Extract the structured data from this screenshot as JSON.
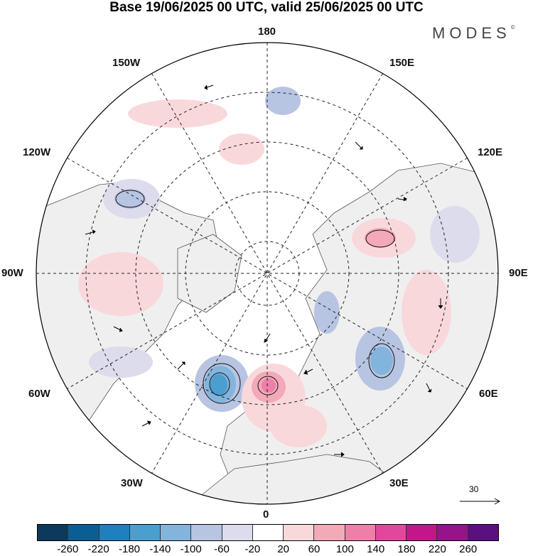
{
  "header": {
    "title": "Base 19/06/2025 00 UTC, valid 25/06/2025 00 UTC",
    "brand": "MODES",
    "brand_mark": "©"
  },
  "map": {
    "projection": "north-polar-stereographic",
    "longitude_labels": {
      "top": "180",
      "bottom": "0",
      "left": "90W",
      "right": "90E",
      "upper_left": "150W",
      "upper_right": "150E",
      "mid_left": "120W",
      "mid_right": "120E",
      "lower_left": "60W",
      "lower_right": "60E",
      "bottom_left": "30W",
      "bottom_right": "30E"
    },
    "wind_reference_vector": "30"
  },
  "legend": {
    "colors": [
      "#0b3a5c",
      "#0b5e93",
      "#1f7fbf",
      "#4b9ed0",
      "#83b4dc",
      "#b7c4e2",
      "#dcdcec",
      "#ffffff",
      "#f9d8dc",
      "#f2a9b8",
      "#ee7fa8",
      "#e1489d",
      "#c3168a",
      "#951489",
      "#5a1080"
    ],
    "ticks": [
      "-260",
      "-220",
      "-180",
      "-140",
      "-100",
      "-60",
      "-20",
      "20",
      "60",
      "100",
      "140",
      "180",
      "220",
      "260"
    ]
  }
}
